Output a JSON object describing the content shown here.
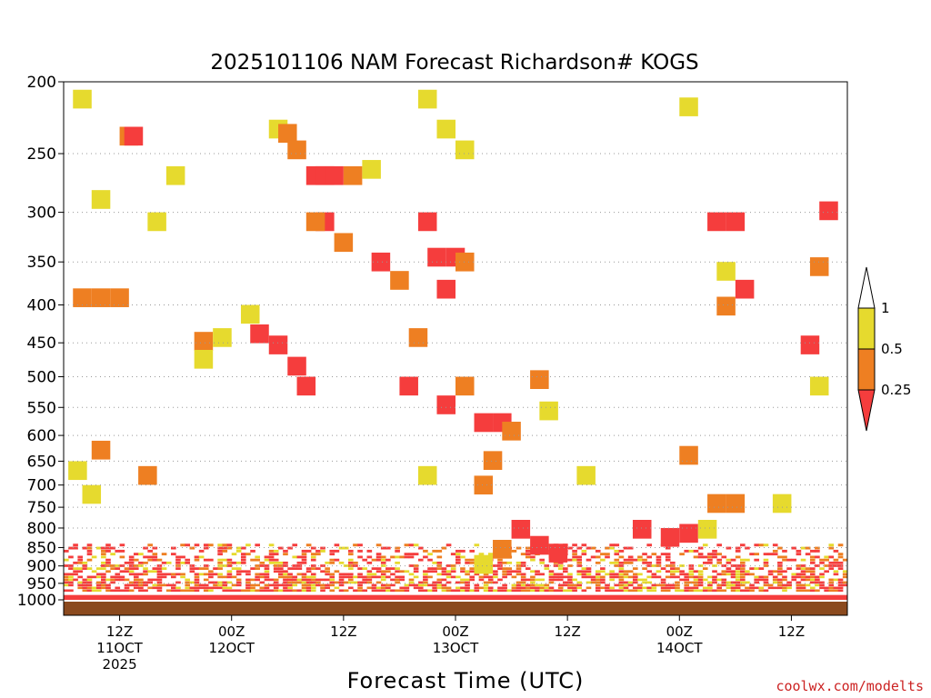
{
  "chart_data": {
    "type": "heatmap",
    "title": "2025101106 NAM Forecast Richardson# KOGS",
    "xlabel": "Forecast Time (UTC)",
    "ylabel": "",
    "y_scale": "log",
    "y_reversed": true,
    "ylim": [
      1000,
      200
    ],
    "yticks": [
      200,
      250,
      300,
      350,
      400,
      450,
      500,
      550,
      600,
      650,
      700,
      750,
      800,
      850,
      900,
      950,
      1000
    ],
    "xlim": [
      "2025-10-11 06Z",
      "2025-10-14 18Z"
    ],
    "xticks": [
      {
        "label": [
          "12Z",
          "11OCT",
          "2025"
        ],
        "hour": 6
      },
      {
        "label": [
          "00Z",
          "12OCT"
        ],
        "hour": 18
      },
      {
        "label": [
          "12Z"
        ],
        "hour": 30
      },
      {
        "label": [
          "00Z",
          "13OCT"
        ],
        "hour": 42
      },
      {
        "label": [
          "12Z"
        ],
        "hour": 54
      },
      {
        "label": [
          "00Z",
          "14OCT"
        ],
        "hour": 66
      },
      {
        "label": [
          "12Z"
        ],
        "hour": 78
      }
    ],
    "grid": "dotted horizontal",
    "legend": {
      "placement": "right",
      "levels": [
        "1",
        "0.5",
        "0.25"
      ],
      "colors": {
        "gt1": "#ffffff",
        "r05_1": "#e6da2e",
        "r025_05": "#ee7f22",
        "lt025": "#f53d3d"
      }
    },
    "ground_color": "#8b4a1e",
    "cells": [
      {
        "h": 1,
        "p": 205,
        "c": 1
      },
      {
        "h": 6,
        "p": 230,
        "c": 2
      },
      {
        "h": 6.5,
        "p": 230,
        "c": 3
      },
      {
        "h": 3,
        "p": 280,
        "c": 1
      },
      {
        "h": 9,
        "p": 300,
        "c": 1
      },
      {
        "h": 11,
        "p": 260,
        "c": 1
      },
      {
        "h": 22,
        "p": 225,
        "c": 1
      },
      {
        "h": 23,
        "p": 228,
        "c": 2
      },
      {
        "h": 24,
        "p": 240,
        "c": 2
      },
      {
        "h": 26,
        "p": 260,
        "c": 3
      },
      {
        "h": 27,
        "p": 260,
        "c": 3
      },
      {
        "h": 28,
        "p": 260,
        "c": 3
      },
      {
        "h": 27,
        "p": 300,
        "c": 3
      },
      {
        "h": 26,
        "p": 300,
        "c": 2
      },
      {
        "h": 29,
        "p": 320,
        "c": 2
      },
      {
        "h": 30,
        "p": 260,
        "c": 2
      },
      {
        "h": 32,
        "p": 255,
        "c": 1
      },
      {
        "h": 38,
        "p": 205,
        "c": 1
      },
      {
        "h": 40,
        "p": 225,
        "c": 1
      },
      {
        "h": 42,
        "p": 240,
        "c": 1
      },
      {
        "h": 38,
        "p": 300,
        "c": 3
      },
      {
        "h": 39,
        "p": 335,
        "c": 3
      },
      {
        "h": 41,
        "p": 335,
        "c": 3
      },
      {
        "h": 40,
        "p": 370,
        "c": 3
      },
      {
        "h": 42,
        "p": 340,
        "c": 2
      },
      {
        "h": 33,
        "p": 340,
        "c": 3
      },
      {
        "h": 35,
        "p": 360,
        "c": 2
      },
      {
        "h": 19,
        "p": 400,
        "c": 1
      },
      {
        "h": 20,
        "p": 425,
        "c": 3
      },
      {
        "h": 22,
        "p": 440,
        "c": 3
      },
      {
        "h": 24,
        "p": 470,
        "c": 3
      },
      {
        "h": 25,
        "p": 500,
        "c": 3
      },
      {
        "h": 14,
        "p": 435,
        "c": 2
      },
      {
        "h": 14,
        "p": 460,
        "c": 1
      },
      {
        "h": 16,
        "p": 430,
        "c": 1
      },
      {
        "h": 36,
        "p": 500,
        "c": 3
      },
      {
        "h": 37,
        "p": 430,
        "c": 2
      },
      {
        "h": 40,
        "p": 530,
        "c": 3
      },
      {
        "h": 42,
        "p": 500,
        "c": 2
      },
      {
        "h": 44,
        "p": 560,
        "c": 3
      },
      {
        "h": 46,
        "p": 560,
        "c": 3
      },
      {
        "h": 47,
        "p": 575,
        "c": 2
      },
      {
        "h": 45,
        "p": 630,
        "c": 2
      },
      {
        "h": 44,
        "p": 680,
        "c": 2
      },
      {
        "h": 38,
        "p": 660,
        "c": 1
      },
      {
        "h": 1,
        "p": 380,
        "c": 2
      },
      {
        "h": 3,
        "p": 380,
        "c": 2
      },
      {
        "h": 5,
        "p": 380,
        "c": 2
      },
      {
        "h": 0.5,
        "p": 650,
        "c": 1
      },
      {
        "h": 2,
        "p": 700,
        "c": 1
      },
      {
        "h": 3,
        "p": 610,
        "c": 2
      },
      {
        "h": 8,
        "p": 660,
        "c": 2
      },
      {
        "h": 51,
        "p": 540,
        "c": 1
      },
      {
        "h": 50,
        "p": 490,
        "c": 2
      },
      {
        "h": 55,
        "p": 660,
        "c": 1
      },
      {
        "h": 66,
        "p": 620,
        "c": 2
      },
      {
        "h": 69,
        "p": 300,
        "c": 3
      },
      {
        "h": 71,
        "p": 300,
        "c": 3
      },
      {
        "h": 70,
        "p": 350,
        "c": 1
      },
      {
        "h": 72,
        "p": 370,
        "c": 3
      },
      {
        "h": 70,
        "p": 390,
        "c": 2
      },
      {
        "h": 66,
        "p": 210,
        "c": 1
      },
      {
        "h": 81,
        "p": 290,
        "c": 3
      },
      {
        "h": 80,
        "p": 345,
        "c": 2
      },
      {
        "h": 79,
        "p": 440,
        "c": 3
      },
      {
        "h": 80,
        "p": 500,
        "c": 1
      },
      {
        "h": 69,
        "p": 720,
        "c": 2
      },
      {
        "h": 71,
        "p": 720,
        "c": 2
      },
      {
        "h": 76,
        "p": 720,
        "c": 1
      },
      {
        "h": 61,
        "p": 780,
        "c": 3
      },
      {
        "h": 64,
        "p": 800,
        "c": 3
      },
      {
        "h": 66,
        "p": 790,
        "c": 3
      },
      {
        "h": 68,
        "p": 780,
        "c": 1
      },
      {
        "h": 48,
        "p": 780,
        "c": 3
      },
      {
        "h": 50,
        "p": 820,
        "c": 3
      },
      {
        "h": 52,
        "p": 840,
        "c": 3
      },
      {
        "h": 46,
        "p": 830,
        "c": 2
      },
      {
        "h": 44,
        "p": 870,
        "c": 1
      }
    ],
    "series_bands": [
      {
        "name_id": "low-level mixed band",
        "p_top": 840,
        "p_bottom": 975
      }
    ]
  },
  "footer": {
    "credit": "coolwx.com/modelts"
  }
}
